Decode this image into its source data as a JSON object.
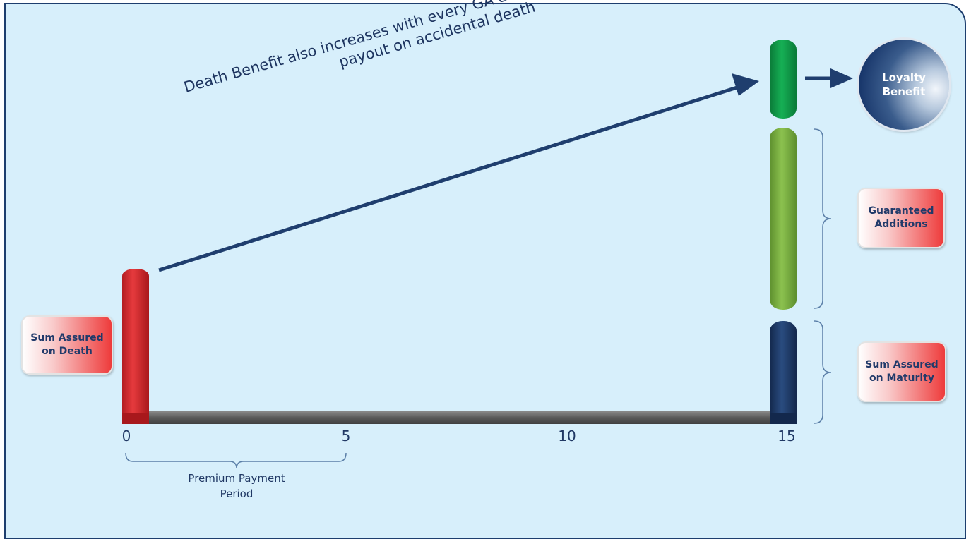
{
  "axis": {
    "ticks": [
      "0",
      "5",
      "10",
      "15"
    ]
  },
  "premium_payment_period": {
    "line1": "Premium Payment",
    "line2": "Period"
  },
  "death_benefit": {
    "line1": "Death Benefit  also increases with every GA and additional equivalent",
    "line2": "payout on accidental death"
  },
  "labels": {
    "sum_assured_on_death": [
      "Sum Assured",
      "on Death"
    ],
    "guaranteed_additions": [
      "Guaranteed",
      "Additions"
    ],
    "sum_assured_on_maturity": [
      "Sum Assured",
      "on Maturity"
    ],
    "loyalty_benefit": [
      "Loyalty",
      "Benefit"
    ]
  },
  "colors": {
    "background": "#d7effb",
    "border": "#1d3e6e",
    "death_bar": "#d92b2f",
    "loyalty_bar": "#0f9a47",
    "guaranteed_bar": "#79b043",
    "maturity_bar": "#1e3a6b",
    "timeline": "#5c5c5c",
    "arrow": "#1f3e6e"
  }
}
